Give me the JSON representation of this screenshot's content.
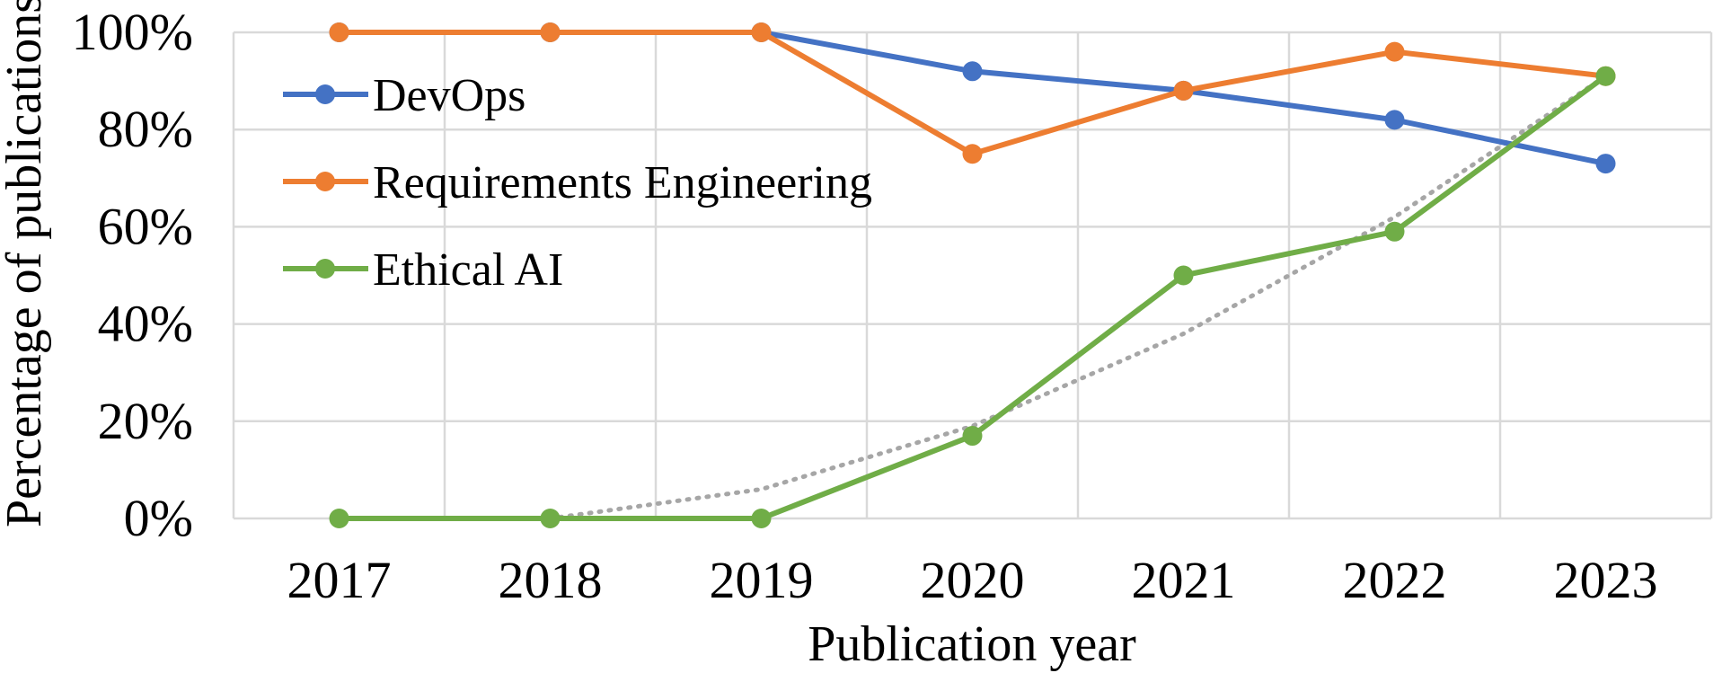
{
  "chart_data": {
    "type": "line",
    "title": "",
    "xlabel": "Publication year",
    "ylabel": "Percentage of publications",
    "categories": [
      "2017",
      "2018",
      "2019",
      "2020",
      "2021",
      "2022",
      "2023"
    ],
    "ylim": [
      0,
      100
    ],
    "yticks": [
      0,
      20,
      40,
      60,
      80,
      100
    ],
    "ytick_labels": [
      "0%",
      "20%",
      "40%",
      "60%",
      "80%",
      "100%"
    ],
    "grid": true,
    "legend_position": "top-left",
    "series": [
      {
        "name": "DevOps",
        "color": "#4472c4",
        "values": [
          100,
          100,
          100,
          92,
          88,
          82,
          73
        ]
      },
      {
        "name": "Requirements Engineering",
        "color": "#ed7d31",
        "values": [
          100,
          100,
          100,
          75,
          88,
          96,
          91
        ]
      },
      {
        "name": "Ethical AI",
        "color": "#70ad47",
        "values": [
          0,
          0,
          0,
          17,
          50,
          59,
          91
        ]
      }
    ],
    "trendline": {
      "series": "Ethical AI",
      "style": "dotted",
      "color": "#a6a6a6",
      "values": [
        0,
        0,
        6,
        19,
        38,
        62,
        91
      ]
    }
  }
}
